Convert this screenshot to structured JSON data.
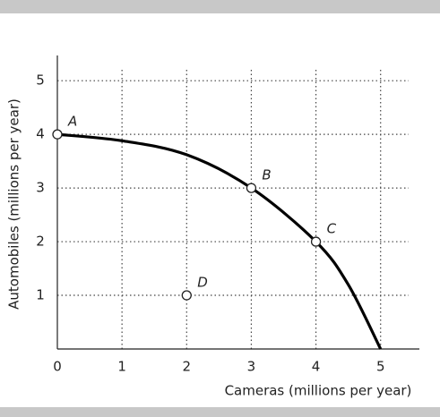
{
  "chart_data": {
    "type": "line",
    "x_label": "Cameras (millions per year)",
    "y_label": "Automobiles (millions per year)",
    "xlim": [
      0,
      5.6
    ],
    "ylim": [
      0,
      5.47
    ],
    "xticks": [
      0,
      1,
      2,
      3,
      4,
      5
    ],
    "yticks": [
      1,
      2,
      3,
      4,
      5
    ],
    "grid": true,
    "series": [
      {
        "color": "#000000",
        "x": [
          0,
          1,
          2,
          3,
          4,
          4.5,
          5
        ],
        "values": [
          4,
          3.88,
          3.62,
          3,
          2,
          1.2,
          0
        ]
      }
    ],
    "points": [
      {
        "label": "A",
        "x": 0,
        "y": 4
      },
      {
        "label": "B",
        "x": 3,
        "y": 3
      },
      {
        "label": "C",
        "x": 4,
        "y": 2
      },
      {
        "label": "D",
        "x": 2,
        "y": 1
      }
    ]
  }
}
